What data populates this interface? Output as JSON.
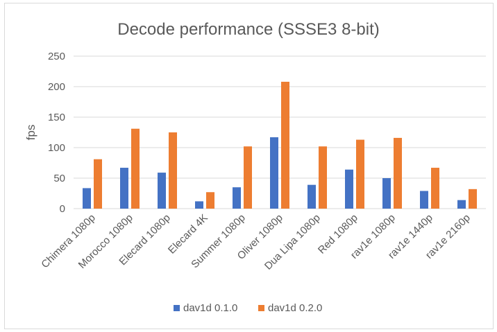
{
  "chart_data": {
    "type": "bar",
    "title": "Decode performance (SSSE3 8-bit)",
    "xlabel": "",
    "ylabel": "fps",
    "ylim": [
      0,
      250
    ],
    "yticks": [
      0,
      50,
      100,
      150,
      200,
      250
    ],
    "grid": true,
    "legend": "bottom",
    "categories": [
      "Chimera 1080p",
      "Morocco 1080p",
      "Elecard 1080p",
      "Elecard 4K",
      "Summer 1080p",
      "Oliver 1080p",
      "Dua Lipa 1080p",
      "Red 1080p",
      "rav1e 1080p",
      "rav1e 1440p",
      "rav1e 2160p"
    ],
    "series": [
      {
        "name": "dav1d 0.1.0",
        "color": "#4472c4",
        "values": [
          33.6,
          67,
          59,
          12,
          35,
          117,
          39,
          64,
          50,
          29,
          14
        ]
      },
      {
        "name": "dav1d 0.2.0",
        "color": "#ed7d31",
        "values": [
          81,
          131,
          125,
          27,
          102,
          208,
          102,
          113,
          116,
          67,
          32
        ]
      }
    ]
  }
}
